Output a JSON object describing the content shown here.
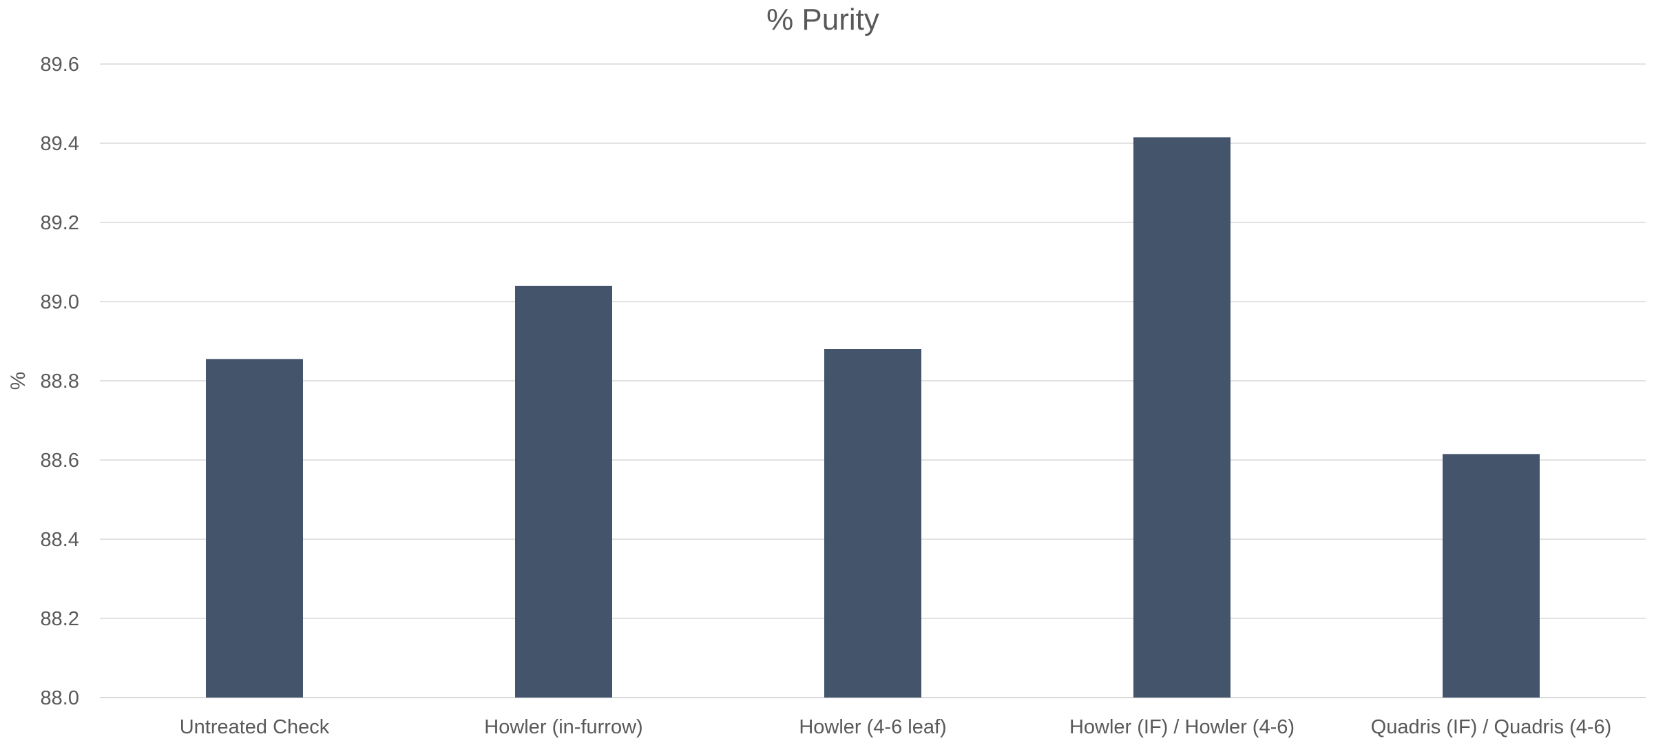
{
  "chart_data": {
    "type": "bar",
    "title": "% Purity",
    "xlabel": "",
    "ylabel": "%",
    "categories": [
      "Untreated Check",
      "Howler (in-furrow)",
      "Howler (4-6 leaf)",
      "Howler (IF) / Howler (4-6)",
      "Quadris (IF) / Quadris (4-6)"
    ],
    "values": [
      88.855,
      89.04,
      88.88,
      89.415,
      88.615
    ],
    "ylim": [
      88.0,
      89.6
    ],
    "yticks": [
      "88.0",
      "88.2",
      "88.4",
      "88.6",
      "88.8",
      "89.0",
      "89.2",
      "89.4",
      "89.6"
    ],
    "grid": true,
    "legend": "none",
    "colors": {
      "bar": "#44546a",
      "grid": "#d9d9d9",
      "text": "#595959"
    }
  }
}
